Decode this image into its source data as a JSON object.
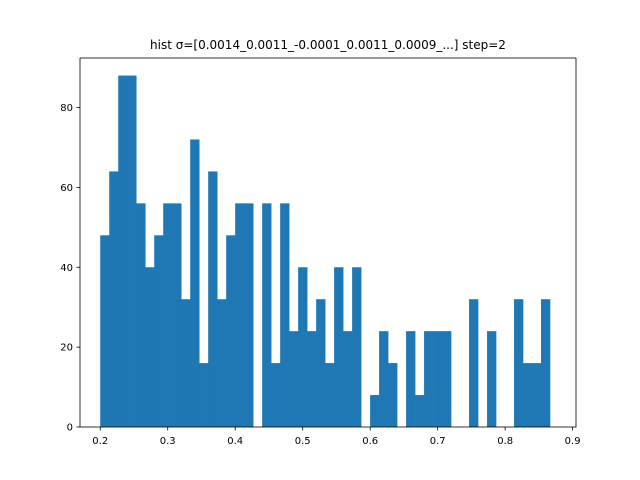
{
  "chart_data": {
    "type": "bar",
    "title": "hist σ=[0.0014_0.0011_-0.0001_0.0011_0.0009_...] step=2",
    "xlabel": "",
    "ylabel": "",
    "xlim": [
      0.17,
      0.905
    ],
    "ylim": [
      0,
      92.4
    ],
    "bin_start": 0.2,
    "bin_width": 0.01333,
    "x_ticks": [
      0.2,
      0.3,
      0.4,
      0.5,
      0.6,
      0.7,
      0.8,
      0.9
    ],
    "x_tick_labels": [
      "0.2",
      "0.3",
      "0.4",
      "0.5",
      "0.6",
      "0.7",
      "0.8",
      "0.9"
    ],
    "y_ticks": [
      0,
      20,
      40,
      60,
      80
    ],
    "y_tick_labels": [
      "0",
      "20",
      "40",
      "60",
      "80"
    ],
    "values": [
      48,
      64,
      88,
      88,
      56,
      40,
      48,
      56,
      56,
      32,
      72,
      16,
      64,
      32,
      48,
      56,
      56,
      0,
      56,
      16,
      56,
      24,
      40,
      24,
      32,
      16,
      40,
      24,
      40,
      0,
      8,
      24,
      16,
      0,
      24,
      8,
      24,
      24,
      24,
      0,
      0,
      32,
      0,
      24,
      0,
      0,
      32,
      16,
      16,
      32
    ],
    "color": "#1f77b4",
    "grid": false,
    "legend": "none"
  }
}
